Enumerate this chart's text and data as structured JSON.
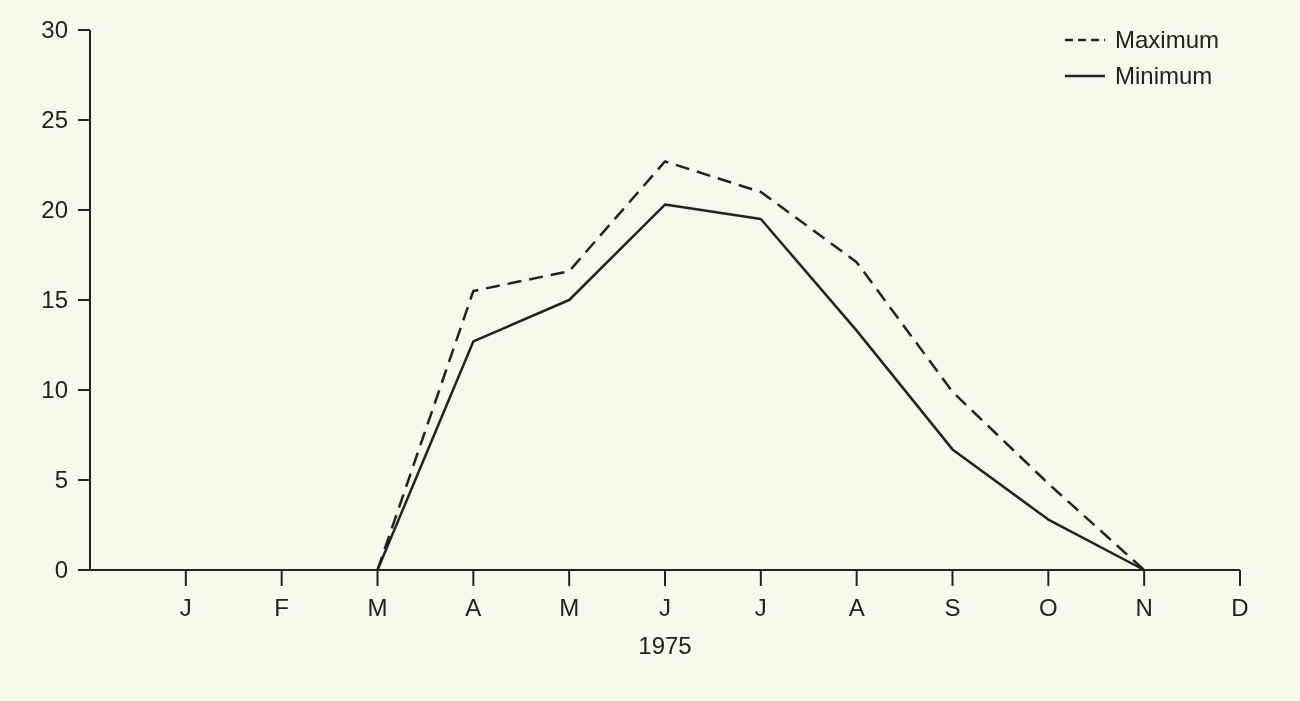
{
  "chart_data": {
    "type": "line",
    "xlabel": "1975",
    "categories": [
      "J",
      "F",
      "M",
      "A",
      "M",
      "J",
      "J",
      "A",
      "S",
      "O",
      "N",
      "D"
    ],
    "ylim": [
      0,
      30
    ],
    "yticks": [
      0,
      5,
      10,
      15,
      20,
      25,
      30
    ],
    "series": [
      {
        "name": "Maximum",
        "color": "#222222",
        "line_style": "dashed",
        "values": [
          null,
          null,
          0,
          15.5,
          16.6,
          22.7,
          21.0,
          17.1,
          9.9,
          4.8,
          0,
          null
        ]
      },
      {
        "name": "Minimum",
        "color": "#222222",
        "line_style": "solid",
        "values": [
          null,
          null,
          0,
          12.7,
          15.0,
          20.3,
          19.5,
          13.3,
          6.7,
          2.8,
          0,
          null
        ]
      }
    ],
    "grid": false,
    "legend": "top right",
    "marker": "none"
  }
}
